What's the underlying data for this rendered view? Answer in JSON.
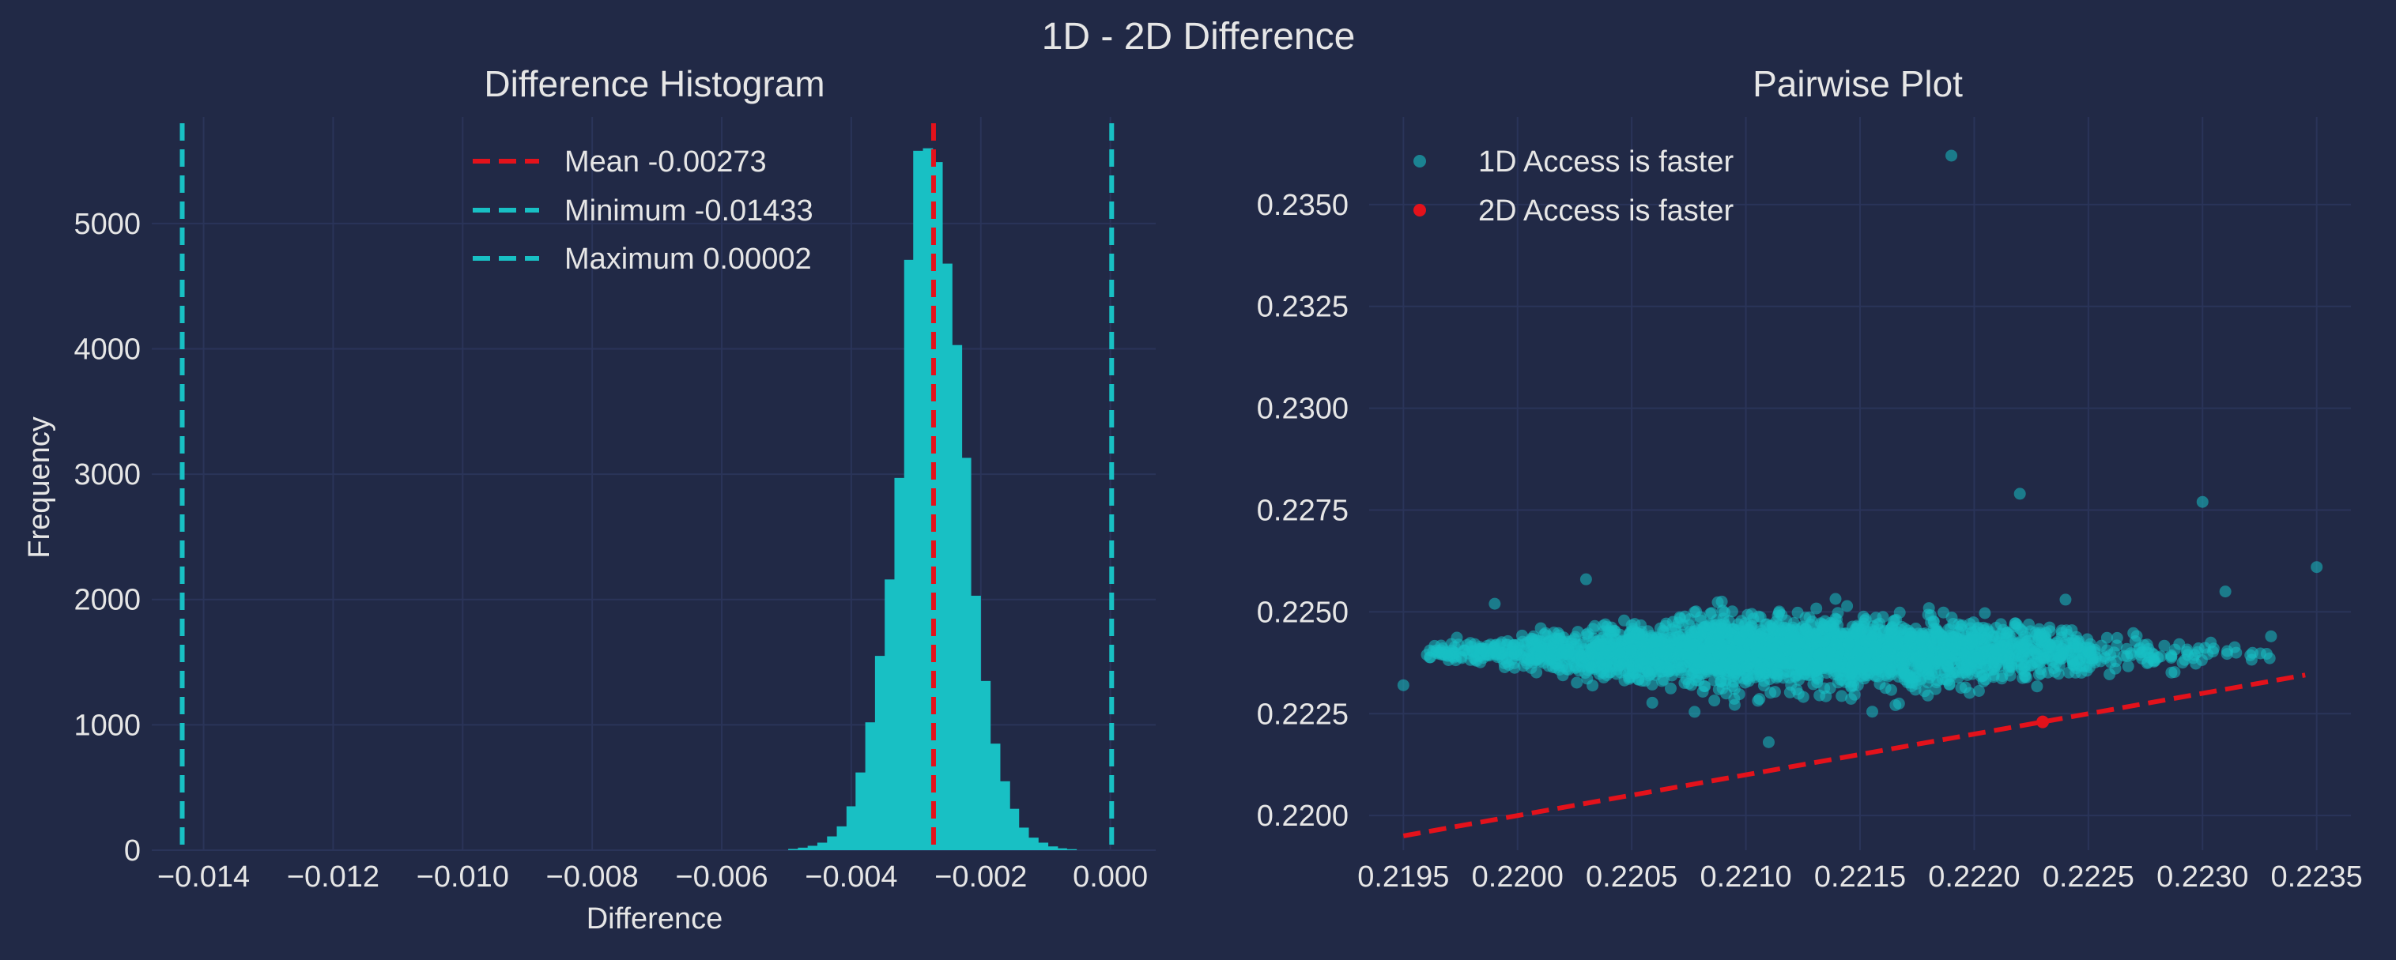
{
  "colors": {
    "background": "#212946",
    "grid": "#2A3459",
    "text": "#e6e6e6",
    "accent_cyan": "#18c0c4",
    "accent_red": "#e3121b"
  },
  "suptitle": "1D - 2D Difference",
  "chart_data": [
    {
      "type": "bar",
      "title": "Difference Histogram",
      "xlabel": "Difference",
      "ylabel": "Frequency",
      "xlim": [
        -0.0148,
        0.0007
      ],
      "ylim": [
        0,
        5850
      ],
      "grid": true,
      "x_ticks": [
        -0.014,
        -0.012,
        -0.01,
        -0.008,
        -0.006,
        -0.004,
        -0.002,
        0.0
      ],
      "x_tick_labels": [
        "−0.014",
        "−0.012",
        "−0.010",
        "−0.008",
        "−0.006",
        "−0.004",
        "−0.002",
        "0.000"
      ],
      "y_ticks": [
        0,
        1000,
        2000,
        3000,
        4000,
        5000
      ],
      "y_tick_labels": [
        "0",
        "1000",
        "2000",
        "3000",
        "4000",
        "5000"
      ],
      "bin_width": 0.000148,
      "bins": [
        {
          "x": -0.0049,
          "value": 10
        },
        {
          "x": -0.00475,
          "value": 20
        },
        {
          "x": -0.0046,
          "value": 35
        },
        {
          "x": -0.00445,
          "value": 60
        },
        {
          "x": -0.0043,
          "value": 110
        },
        {
          "x": -0.00415,
          "value": 190
        },
        {
          "x": -0.004,
          "value": 350
        },
        {
          "x": -0.00386,
          "value": 620
        },
        {
          "x": -0.00371,
          "value": 1020
        },
        {
          "x": -0.00356,
          "value": 1550
        },
        {
          "x": -0.00341,
          "value": 2160
        },
        {
          "x": -0.00326,
          "value": 2970
        },
        {
          "x": -0.00311,
          "value": 4710
        },
        {
          "x": -0.00297,
          "value": 5580
        },
        {
          "x": -0.00282,
          "value": 5600
        },
        {
          "x": -0.00267,
          "value": 5490
        },
        {
          "x": -0.00252,
          "value": 4680
        },
        {
          "x": -0.00237,
          "value": 4030
        },
        {
          "x": -0.00223,
          "value": 3130
        },
        {
          "x": -0.00208,
          "value": 2030
        },
        {
          "x": -0.00193,
          "value": 1350
        },
        {
          "x": -0.00178,
          "value": 850
        },
        {
          "x": -0.00163,
          "value": 550
        },
        {
          "x": -0.00149,
          "value": 330
        },
        {
          "x": -0.00134,
          "value": 180
        },
        {
          "x": -0.00119,
          "value": 100
        },
        {
          "x": -0.00104,
          "value": 60
        },
        {
          "x": -0.00089,
          "value": 30
        },
        {
          "x": -0.00075,
          "value": 15
        },
        {
          "x": -0.0006,
          "value": 8
        }
      ],
      "vlines": [
        {
          "x": -0.00273,
          "color": "#e3121b"
        },
        {
          "x": -0.01433,
          "color": "#18c0c4"
        },
        {
          "x": 2e-05,
          "color": "#18c0c4"
        }
      ],
      "legend": {
        "placement": "upper center",
        "entries": [
          {
            "label": "Mean -0.00273",
            "color": "#e3121b"
          },
          {
            "label": "Minimum -0.01433",
            "color": "#18c0c4"
          },
          {
            "label": "Maximum 0.00002",
            "color": "#18c0c4"
          }
        ]
      }
    },
    {
      "type": "scatter",
      "title": "Pairwise Plot",
      "xlim": [
        0.21935,
        0.22365
      ],
      "ylim": [
        0.21915,
        0.23715
      ],
      "grid": true,
      "x_ticks": [
        0.2195,
        0.22,
        0.2205,
        0.221,
        0.2215,
        0.222,
        0.2225,
        0.223,
        0.2235
      ],
      "x_tick_labels": [
        "0.2195",
        "0.2200",
        "0.2205",
        "0.2210",
        "0.2215",
        "0.2220",
        "0.2225",
        "0.2230",
        "0.2235"
      ],
      "y_ticks": [
        0.22,
        0.2225,
        0.225,
        0.2275,
        0.23,
        0.2325,
        0.235
      ],
      "y_tick_labels": [
        "0.2200",
        "0.2225",
        "0.2250",
        "0.2275",
        "0.2300",
        "0.2325",
        "0.2350"
      ],
      "series": [
        {
          "name": "1D Access is faster",
          "color": "#18c0c4",
          "cluster": {
            "x_range": [
              0.2196,
              0.2233
            ],
            "y_center": 0.224,
            "y_halfwidth_max": 0.0011,
            "density_center_x": 0.2212,
            "approx_count": 3000
          },
          "outliers": [
            [
              0.2195,
              0.2232
            ],
            [
              0.2219,
              0.2362
            ],
            [
              0.2222,
              0.2279
            ],
            [
              0.223,
              0.2277
            ],
            [
              0.2235,
              0.2261
            ],
            [
              0.2211,
              0.2218
            ],
            [
              0.2231,
              0.2255
            ],
            [
              0.2233,
              0.2244
            ],
            [
              0.2203,
              0.2258
            ],
            [
              0.2199,
              0.2252
            ],
            [
              0.2224,
              0.2253
            ]
          ]
        },
        {
          "name": "2D Access is faster",
          "color": "#e3121b",
          "points": [
            [
              0.2223,
              0.2223
            ]
          ]
        }
      ],
      "reference_line": {
        "color": "#e3121b",
        "from": [
          0.2195,
          0.2195
        ],
        "to": [
          0.22345,
          0.22345
        ]
      },
      "legend": {
        "placement": "upper left",
        "entries": [
          {
            "label": "1D Access is faster",
            "color": "#18c0c4"
          },
          {
            "label": "2D Access is faster",
            "color": "#e3121b"
          }
        ]
      }
    }
  ]
}
